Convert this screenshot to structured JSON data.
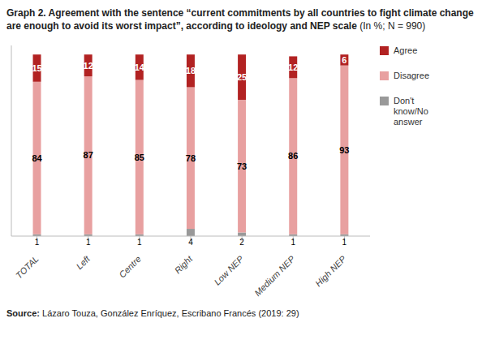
{
  "chart_data": {
    "type": "bar",
    "stacked": true,
    "title": "Graph 2. Agreement with the sentence “current commitments by all countries to fight climate change are enough to avoid its worst impact”, according to ideology and NEP scale",
    "subtitle": "(In %; N = 990)",
    "source": "Source: Lázaro Touza, González Enríquez, Escribano Francés (2019: 29)",
    "categories": [
      "TOTAL",
      "Left",
      "Centre",
      "Right",
      "Low NEP",
      "Medium NEP",
      "High NEP"
    ],
    "series": [
      {
        "name": "Agree",
        "color": "#b22222",
        "values": [
          15,
          12,
          14,
          18,
          25,
          12,
          6
        ]
      },
      {
        "name": "Disagree",
        "color": "#e8a0a0",
        "values": [
          84,
          87,
          85,
          78,
          73,
          86,
          93
        ]
      },
      {
        "name": "Don't\nknow/No\nanswer",
        "color": "#999999",
        "values": [
          1,
          1,
          1,
          4,
          2,
          1,
          1
        ]
      }
    ],
    "ylim": [
      0,
      105
    ],
    "grid": false,
    "legend": "right",
    "data_labels": true,
    "tick_labels": "x"
  }
}
